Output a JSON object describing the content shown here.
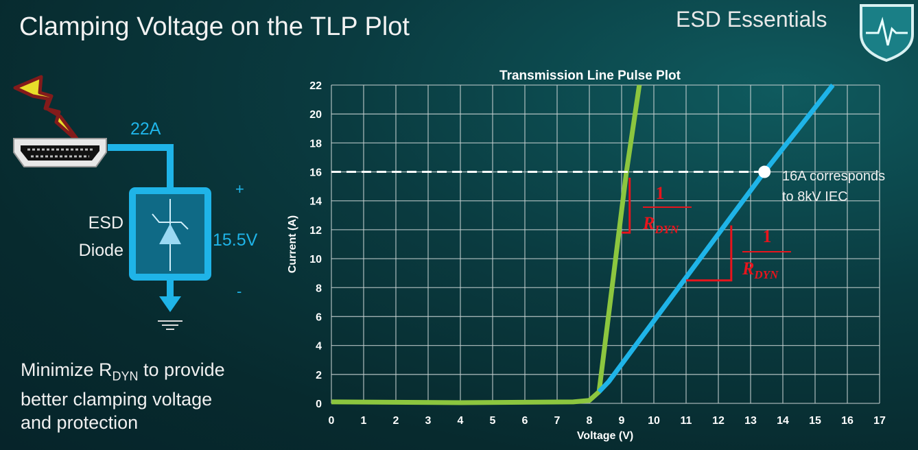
{
  "slide": {
    "title": "Clamping Voltage on the TLP Plot",
    "brand": "ESD Essentials",
    "summary_pre": "Minimize R",
    "summary_sub": "DYN",
    "summary_post_1": " to provide",
    "summary_line2": "better clamping voltage",
    "summary_line3": "and protection"
  },
  "circuit": {
    "current_label": "22A",
    "device_label_1": "ESD",
    "device_label_2": "Diode",
    "voltage_label": "15.5V",
    "plus": "+",
    "minus": "-",
    "accent": "#1fb4e8"
  },
  "chart_data": {
    "type": "line",
    "title": "Transmission Line Pulse Plot",
    "xlabel": "Voltage (V)",
    "ylabel": "Current (A)",
    "xlim": [
      0,
      17
    ],
    "ylim": [
      0,
      22
    ],
    "xticks": [
      0,
      1,
      2,
      3,
      4,
      5,
      6,
      7,
      8,
      9,
      10,
      11,
      12,
      13,
      14,
      15,
      16,
      17
    ],
    "yticks": [
      0,
      2,
      4,
      6,
      8,
      10,
      12,
      14,
      16,
      18,
      20,
      22
    ],
    "grid": true,
    "series": [
      {
        "color": "#8cc63f",
        "points": [
          [
            0,
            0.1
          ],
          [
            4,
            0.05
          ],
          [
            7.5,
            0.1
          ],
          [
            8.0,
            0.2
          ],
          [
            8.3,
            0.8
          ],
          [
            9.15,
            16
          ],
          [
            9.55,
            22
          ]
        ]
      },
      {
        "color": "#1fb4e8",
        "points": [
          [
            8.3,
            0.8
          ],
          [
            8.6,
            1.5
          ],
          [
            13.43,
            16
          ],
          [
            15.55,
            22
          ]
        ]
      }
    ],
    "reference_line": {
      "y": 16,
      "style": "dashed",
      "color": "#ffffff"
    },
    "marker": {
      "x": 13.43,
      "y": 16
    },
    "annotations": {
      "marker_text_1": "16A corresponds",
      "marker_text_2": "to 8kV IEC",
      "slope_num": "1",
      "slope_den": "R",
      "slope_den_sub": "DYN",
      "slope_color": "#e8141c"
    }
  }
}
